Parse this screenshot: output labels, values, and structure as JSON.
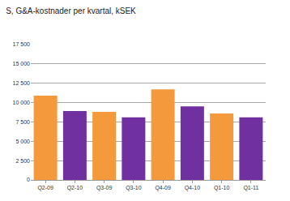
{
  "chart_data": {
    "type": "bar",
    "title": "S, G&A-kostnader per kvartal, kSEK",
    "categories": [
      "Q2-09",
      "Q2-10",
      "Q3-09",
      "Q3-10",
      "Q4-09",
      "Q4-10",
      "Q1-10",
      "Q1-11"
    ],
    "values": [
      10900,
      8900,
      8800,
      8100,
      11700,
      9500,
      8600,
      8100
    ],
    "colors": [
      "#f59a3c",
      "#7030a0",
      "#f59a3c",
      "#7030a0",
      "#f59a3c",
      "#7030a0",
      "#f59a3c",
      "#7030a0"
    ],
    "ylim": [
      0,
      17500
    ],
    "yticks": [
      0,
      {
        "value": 2500,
        "label": "2 500"
      },
      {
        "value": 5000,
        "label": "5 000"
      },
      {
        "value": 7500,
        "label": "7 500"
      },
      {
        "value": 10000,
        "label": "10 000"
      },
      {
        "value": 12500,
        "label": "12 500"
      },
      {
        "value": 15000,
        "label": "15 000"
      },
      {
        "value": 17500,
        "label": "17 500"
      }
    ],
    "grid": true
  }
}
